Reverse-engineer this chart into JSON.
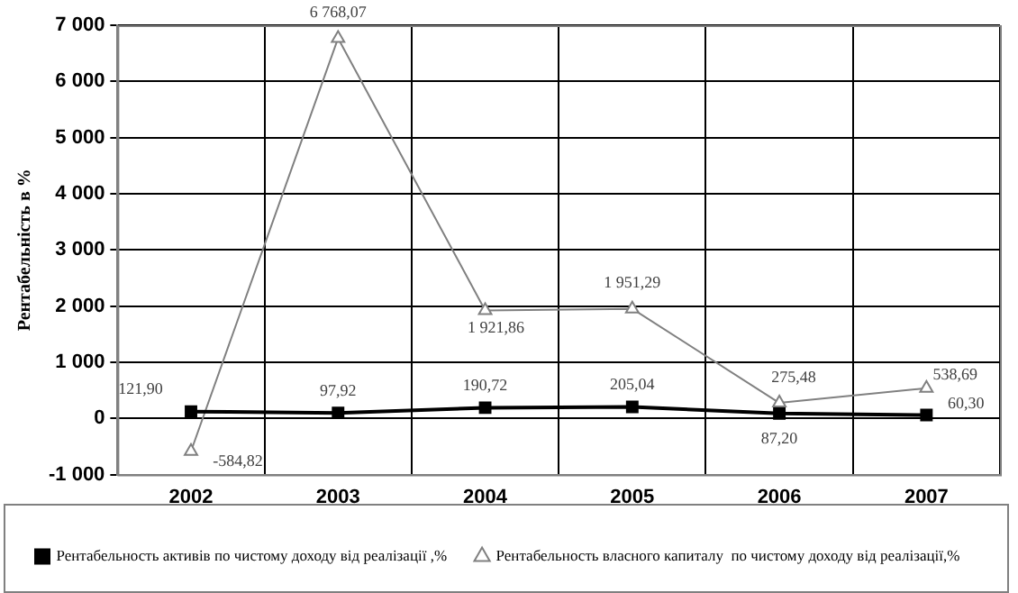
{
  "chart_data": {
    "type": "line",
    "ylabel": "Рентабельність в %",
    "categories": [
      "2002",
      "2003",
      "2004",
      "2005",
      "2006",
      "2007"
    ],
    "series": [
      {
        "name": "Рентабельность активів по чистому доходу від реалізації ,%",
        "color": "#000000",
        "marker": "square",
        "values": [
          121.9,
          97.92,
          190.72,
          205.04,
          87.2,
          60.3
        ],
        "value_labels": [
          "121,90",
          "97,92",
          "190,72",
          "205,04",
          "87,20",
          "60,30"
        ]
      },
      {
        "name": "Рентабельность власного капиталу  по чистому доходу від реалізації,%",
        "color": "#808080",
        "marker": "triangle",
        "values": [
          -584.82,
          6768.07,
          1921.86,
          1951.29,
          275.48,
          538.69
        ],
        "value_labels": [
          "-584,82",
          "6 768,07",
          "1 921,86",
          "1 951,29",
          "275,48",
          "538,69"
        ]
      }
    ],
    "ylim": [
      -1000,
      7000
    ],
    "yticks": [
      {
        "value": -1000,
        "label": "-1 000"
      },
      0,
      {
        "value": 1000,
        "label": "1 000"
      },
      {
        "value": 2000,
        "label": "2 000"
      },
      {
        "value": 3000,
        "label": "3 000"
      },
      {
        "value": 4000,
        "label": "4 000"
      },
      {
        "value": 5000,
        "label": "5 000"
      },
      {
        "value": 6000,
        "label": "6 000"
      },
      {
        "value": 7000,
        "label": "7 000"
      }
    ],
    "grid": true,
    "legend": "bottom",
    "line_style": "solid"
  }
}
